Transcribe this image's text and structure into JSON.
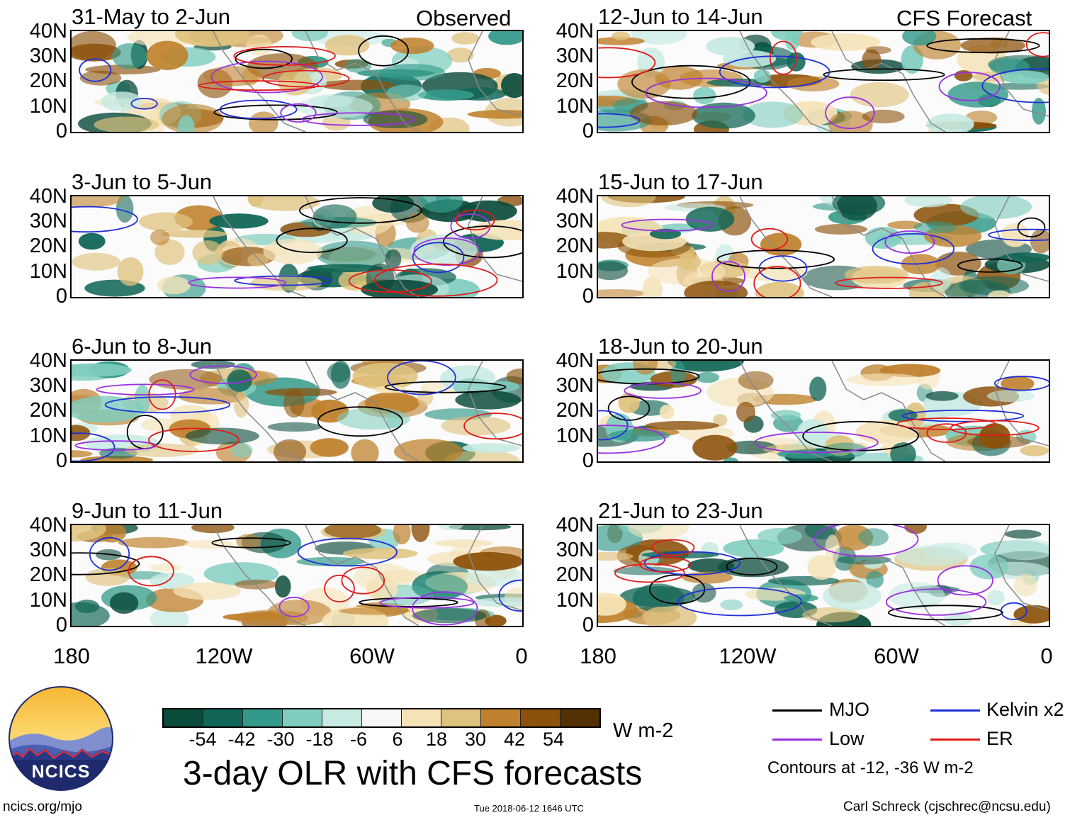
{
  "header_tags": {
    "left": "Observed",
    "right": "CFS Forecast"
  },
  "y_ticks": [
    "40N",
    "30N",
    "20N",
    "10N",
    "0"
  ],
  "x_ticks": [
    "180",
    "120W",
    "60W",
    "0"
  ],
  "panels": [
    {
      "title": "31-May to 2-Jun",
      "column": "observed"
    },
    {
      "title": "3-Jun to 5-Jun",
      "column": "observed"
    },
    {
      "title": "6-Jun to 8-Jun",
      "column": "observed"
    },
    {
      "title": "9-Jun to 11-Jun",
      "column": "observed"
    },
    {
      "title": "12-Jun to 14-Jun",
      "column": "forecast"
    },
    {
      "title": "15-Jun to 17-Jun",
      "column": "forecast"
    },
    {
      "title": "18-Jun to 20-Jun",
      "column": "forecast"
    },
    {
      "title": "21-Jun to 23-Jun",
      "column": "forecast"
    }
  ],
  "colorbar": {
    "labels": [
      "-54",
      "-42",
      "-30",
      "-18",
      "-6",
      "6",
      "18",
      "30",
      "42",
      "54"
    ],
    "colors": [
      "#0b4b3c",
      "#116657",
      "#33998a",
      "#7fcdbf",
      "#c7eae3",
      "#f7f7f7",
      "#f5e3b8",
      "#dfc27d",
      "#bf812d",
      "#8c510a",
      "#543005"
    ],
    "units": "W m-2"
  },
  "legend": [
    {
      "label": "MJO",
      "color": "#000000"
    },
    {
      "label": "Kelvin x2",
      "color": "#1f2fd6"
    },
    {
      "label": "Low",
      "color": "#9b30e0"
    },
    {
      "label": "ER",
      "color": "#e01b1b"
    }
  ],
  "contour_note": "Contours at -12, -36 W m-2",
  "main_title": "3-day OLR with CFS forecasts",
  "logo_text": "NCICS",
  "footer": {
    "left": "ncics.org/mjo",
    "center": "Tue 2018-06-12 1646 UTC",
    "right": "Carl Schreck (cjschrec@ncsu.edu)"
  },
  "chart_data": {
    "type": "heatmap",
    "title": "3-day OLR with CFS forecasts",
    "variable": "OLR anomaly",
    "units": "W m-2",
    "lon_range": [
      "180",
      "0"
    ],
    "lat_range": [
      "0",
      "40N"
    ],
    "levels": [
      -54,
      -42,
      -30,
      -18,
      -6,
      6,
      18,
      30,
      42,
      54
    ],
    "contour_levels": [
      -12,
      -36
    ],
    "panels": [
      "31-May to 2-Jun",
      "3-Jun to 5-Jun",
      "6-Jun to 8-Jun",
      "9-Jun to 11-Jun",
      "12-Jun to 14-Jun",
      "15-Jun to 17-Jun",
      "18-Jun to 20-Jun",
      "21-Jun to 23-Jun"
    ],
    "series": [
      {
        "name": "MJO",
        "color": "#000000"
      },
      {
        "name": "Kelvin x2",
        "color": "#1f2fd6"
      },
      {
        "name": "Low",
        "color": "#9b30e0"
      },
      {
        "name": "ER",
        "color": "#e01b1b"
      }
    ]
  }
}
